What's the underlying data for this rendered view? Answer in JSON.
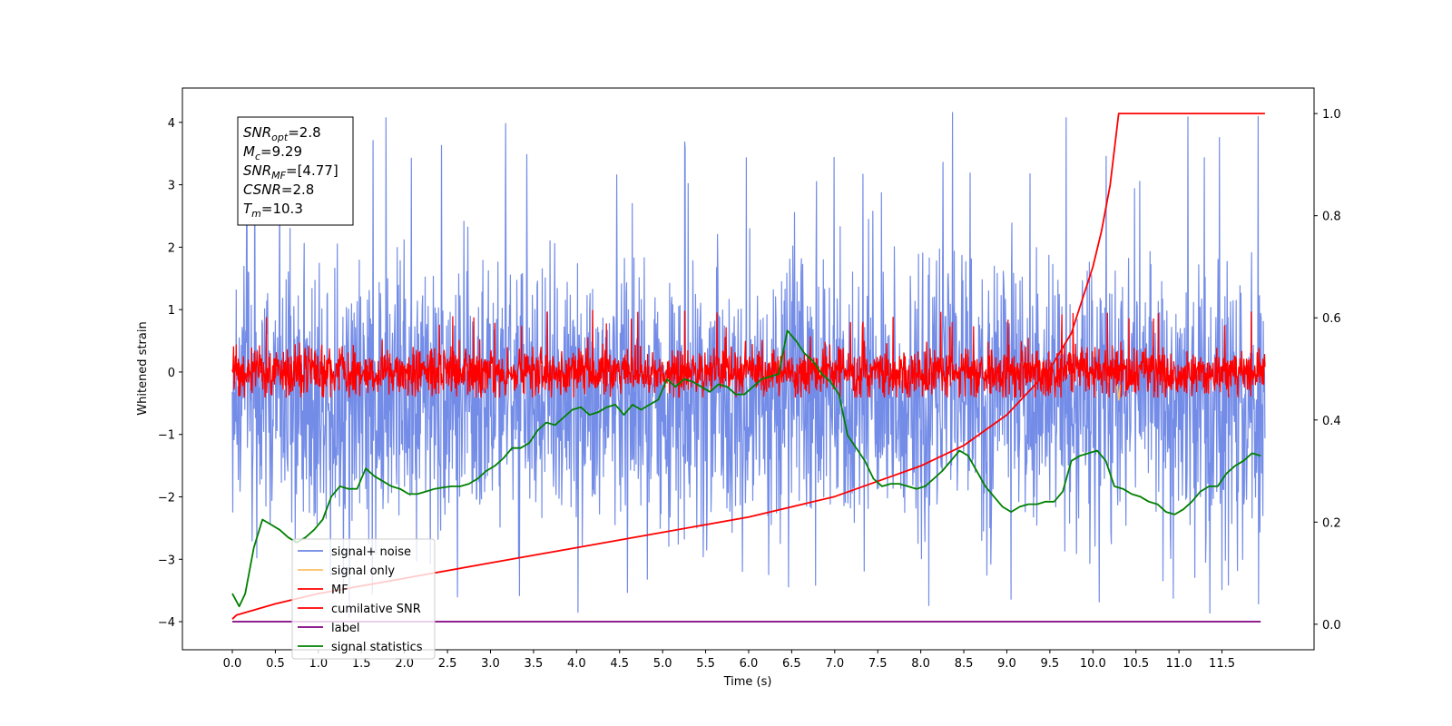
{
  "chart_data": {
    "type": "line",
    "xlabel": "Time (s)",
    "ylabel": "Whitened strain",
    "xlim": [
      -0.58,
      12.57
    ],
    "ylim": [
      -4.45,
      4.55
    ],
    "y2lim": [
      -0.05,
      1.05
    ],
    "x_ticks": [
      0.0,
      0.5,
      1.0,
      1.5,
      2.0,
      2.5,
      3.0,
      3.5,
      4.0,
      4.5,
      5.0,
      5.5,
      6.0,
      6.5,
      7.0,
      7.5,
      8.0,
      8.5,
      9.0,
      9.5,
      10.0,
      10.5,
      11.0,
      11.5
    ],
    "x_tick_labels": [
      "0.0",
      "0.5",
      "1.0",
      "1.5",
      "2.0",
      "2.5",
      "3.0",
      "3.5",
      "4.0",
      "4.5",
      "5.0",
      "5.5",
      "6.0",
      "6.5",
      "7.0",
      "7.5",
      "8.0",
      "8.5",
      "9.0",
      "9.5",
      "10.0",
      "10.5",
      "11.0",
      "11.5"
    ],
    "y_ticks": [
      4,
      3,
      2,
      1,
      0,
      -1,
      -2,
      -3,
      -4
    ],
    "y_tick_labels": [
      "4",
      "3",
      "2",
      "1",
      "0",
      "−1",
      "−2",
      "−3",
      "−4"
    ],
    "y2_ticks": [
      1.0,
      0.8,
      0.6,
      0.4,
      0.2,
      0.0
    ],
    "y2_tick_labels": [
      "1.0",
      "0.8",
      "0.6",
      "0.4",
      "0.2",
      "0.0"
    ],
    "legend_position": "lower-left",
    "series": [
      {
        "name": "signal+ noise",
        "color": "#6b86e6",
        "axis": "left",
        "kind": "noise",
        "x_range": [
          0.0,
          12.0
        ],
        "center": -0.35,
        "typical_range": [
          -2.5,
          2.5
        ],
        "extremes": [
          -3.95,
          4.18
        ]
      },
      {
        "name": "signal only",
        "color": "#ffbf66",
        "axis": "left",
        "kind": "spike",
        "x": [
          10.28,
          10.3,
          10.32
        ],
        "y": [
          -0.2,
          -0.45,
          -0.2
        ]
      },
      {
        "name": "MF",
        "color": "#ff0000",
        "axis": "left",
        "kind": "noise",
        "x_range": [
          0.0,
          12.0
        ],
        "center": 0.0,
        "typical_range": [
          -0.35,
          0.55
        ],
        "extremes": [
          -0.4,
          1.0
        ]
      },
      {
        "name": "cumilative SNR",
        "color": "#ff0000",
        "axis": "right",
        "kind": "line",
        "x": [
          0.0,
          0.05,
          0.5,
          1.0,
          2.0,
          3.0,
          4.0,
          5.0,
          6.0,
          7.0,
          7.5,
          8.0,
          8.5,
          9.0,
          9.5,
          9.75,
          10.0,
          10.1,
          10.2,
          10.25,
          10.3,
          11.5,
          12.0
        ],
        "y": [
          0.01,
          0.018,
          0.04,
          0.06,
          0.09,
          0.12,
          0.15,
          0.18,
          0.21,
          0.25,
          0.28,
          0.31,
          0.35,
          0.41,
          0.5,
          0.57,
          0.7,
          0.77,
          0.86,
          0.93,
          1.0,
          1.0,
          1.0
        ]
      },
      {
        "name": "label",
        "color": "#800080",
        "axis": "left",
        "kind": "line",
        "x": [
          0.0,
          11.95
        ],
        "y": [
          -4.0,
          -4.0
        ]
      },
      {
        "name": "signal statistics",
        "color": "#008000",
        "axis": "right",
        "kind": "line",
        "x": [
          0.0,
          0.08,
          0.15,
          0.25,
          0.35,
          0.45,
          0.55,
          0.65,
          0.75,
          0.85,
          0.95,
          1.05,
          1.15,
          1.25,
          1.35,
          1.45,
          1.55,
          1.65,
          1.75,
          1.85,
          1.95,
          2.05,
          2.15,
          2.25,
          2.35,
          2.45,
          2.55,
          2.65,
          2.75,
          2.85,
          2.95,
          3.05,
          3.15,
          3.25,
          3.35,
          3.45,
          3.55,
          3.65,
          3.75,
          3.85,
          3.95,
          4.05,
          4.15,
          4.25,
          4.35,
          4.45,
          4.55,
          4.65,
          4.75,
          4.85,
          4.95,
          5.05,
          5.15,
          5.25,
          5.35,
          5.45,
          5.55,
          5.65,
          5.75,
          5.85,
          5.95,
          6.05,
          6.15,
          6.25,
          6.35,
          6.45,
          6.55,
          6.65,
          6.75,
          6.85,
          6.95,
          7.05,
          7.15,
          7.25,
          7.35,
          7.45,
          7.55,
          7.65,
          7.75,
          7.85,
          7.95,
          8.05,
          8.15,
          8.25,
          8.35,
          8.45,
          8.55,
          8.65,
          8.75,
          8.85,
          8.95,
          9.05,
          9.15,
          9.25,
          9.35,
          9.45,
          9.55,
          9.65,
          9.75,
          9.85,
          9.95,
          10.05,
          10.15,
          10.25,
          10.35,
          10.45,
          10.55,
          10.65,
          10.75,
          10.85,
          10.95,
          11.05,
          11.15,
          11.25,
          11.35,
          11.45,
          11.55,
          11.65,
          11.75,
          11.85,
          11.95
        ],
        "y": [
          0.06,
          0.035,
          0.06,
          0.15,
          0.205,
          0.195,
          0.185,
          0.17,
          0.16,
          0.17,
          0.185,
          0.205,
          0.25,
          0.27,
          0.265,
          0.265,
          0.305,
          0.29,
          0.28,
          0.27,
          0.265,
          0.255,
          0.255,
          0.26,
          0.265,
          0.268,
          0.27,
          0.27,
          0.275,
          0.285,
          0.3,
          0.31,
          0.325,
          0.345,
          0.345,
          0.355,
          0.38,
          0.395,
          0.39,
          0.405,
          0.42,
          0.425,
          0.41,
          0.415,
          0.425,
          0.43,
          0.41,
          0.43,
          0.42,
          0.43,
          0.44,
          0.48,
          0.465,
          0.48,
          0.475,
          0.465,
          0.455,
          0.47,
          0.465,
          0.45,
          0.45,
          0.465,
          0.48,
          0.485,
          0.49,
          0.575,
          0.555,
          0.53,
          0.515,
          0.49,
          0.475,
          0.45,
          0.37,
          0.345,
          0.32,
          0.285,
          0.27,
          0.275,
          0.275,
          0.27,
          0.265,
          0.27,
          0.285,
          0.3,
          0.32,
          0.34,
          0.33,
          0.3,
          0.27,
          0.25,
          0.23,
          0.22,
          0.23,
          0.235,
          0.235,
          0.24,
          0.24,
          0.26,
          0.32,
          0.33,
          0.335,
          0.34,
          0.32,
          0.27,
          0.265,
          0.255,
          0.25,
          0.24,
          0.235,
          0.22,
          0.215,
          0.225,
          0.24,
          0.26,
          0.27,
          0.27,
          0.295,
          0.31,
          0.32,
          0.335,
          0.33
        ]
      }
    ]
  },
  "info_box": {
    "lines": [
      {
        "base": "SNR",
        "sub": "opt",
        "value": "=2.8"
      },
      {
        "base": "M",
        "sub": "c",
        "value": "=9.29"
      },
      {
        "base": "SNR",
        "sub": "MF",
        "value": "=[4.77]"
      },
      {
        "base": "CSNR",
        "sub": "",
        "value": "=2.8"
      },
      {
        "base": "T",
        "sub": "m",
        "value": "=10.3"
      }
    ]
  }
}
